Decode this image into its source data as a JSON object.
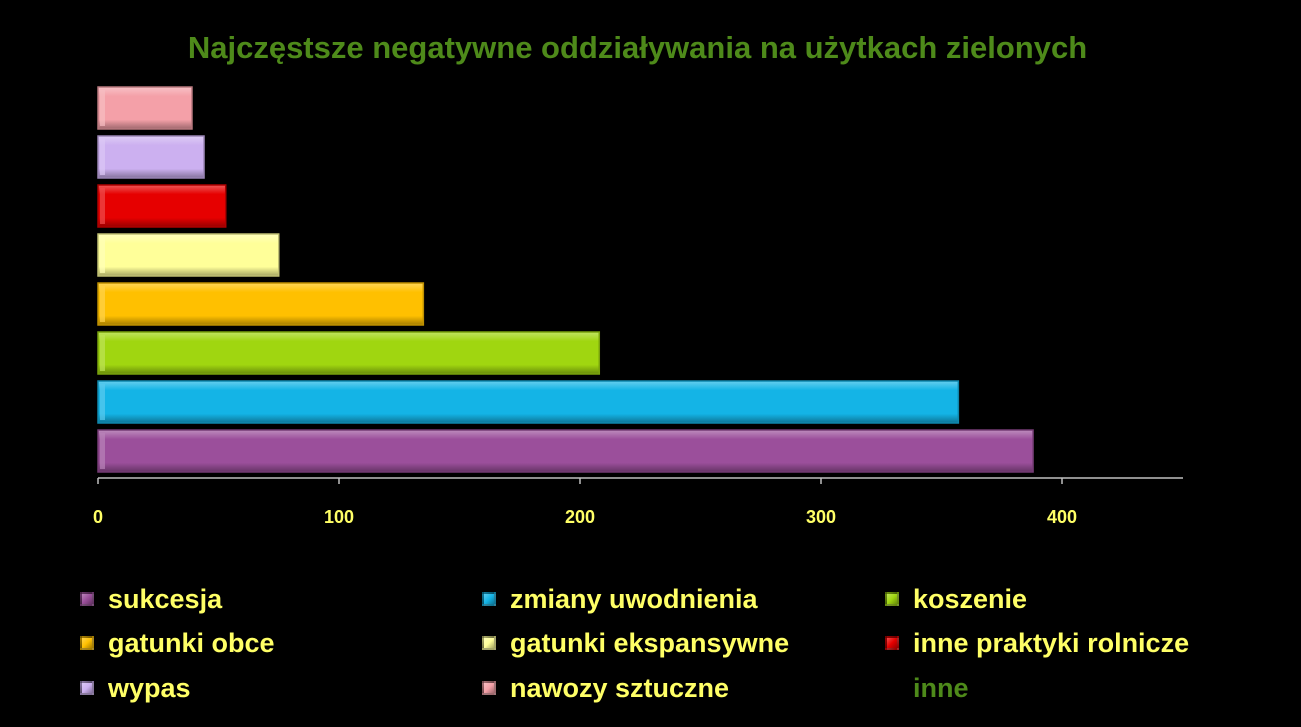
{
  "chart_data": {
    "type": "bar",
    "orientation": "horizontal",
    "title": "Najczęstsze negatywne oddziaływania na użytkach zielonych",
    "xlim": [
      0,
      450
    ],
    "x_ticks": [
      "0",
      "100",
      "200",
      "300",
      "400"
    ],
    "grid": false,
    "legend_position": "bottom",
    "series": [
      {
        "name": "sukcesja",
        "value": 388,
        "color": "#9b4f9b"
      },
      {
        "name": "zmiany uwodnienia",
        "value": 357,
        "color": "#14b4e6"
      },
      {
        "name": "koszenie",
        "value": 208,
        "color": "#a0d610"
      },
      {
        "name": "gatunki obce",
        "value": 135,
        "color": "#ffc000"
      },
      {
        "name": "gatunki ekspansywne",
        "value": 75,
        "color": "#ffff99"
      },
      {
        "name": "inne praktyki rolnicze",
        "value": 53,
        "color": "#e60000"
      },
      {
        "name": "wypas",
        "value": 44,
        "color": "#ccb0f0"
      },
      {
        "name": "nawozy sztuczne",
        "value": 39,
        "color": "#f4a0a8"
      },
      {
        "name": "inne",
        "value": 0,
        "color": "#4e8a1a"
      }
    ]
  }
}
